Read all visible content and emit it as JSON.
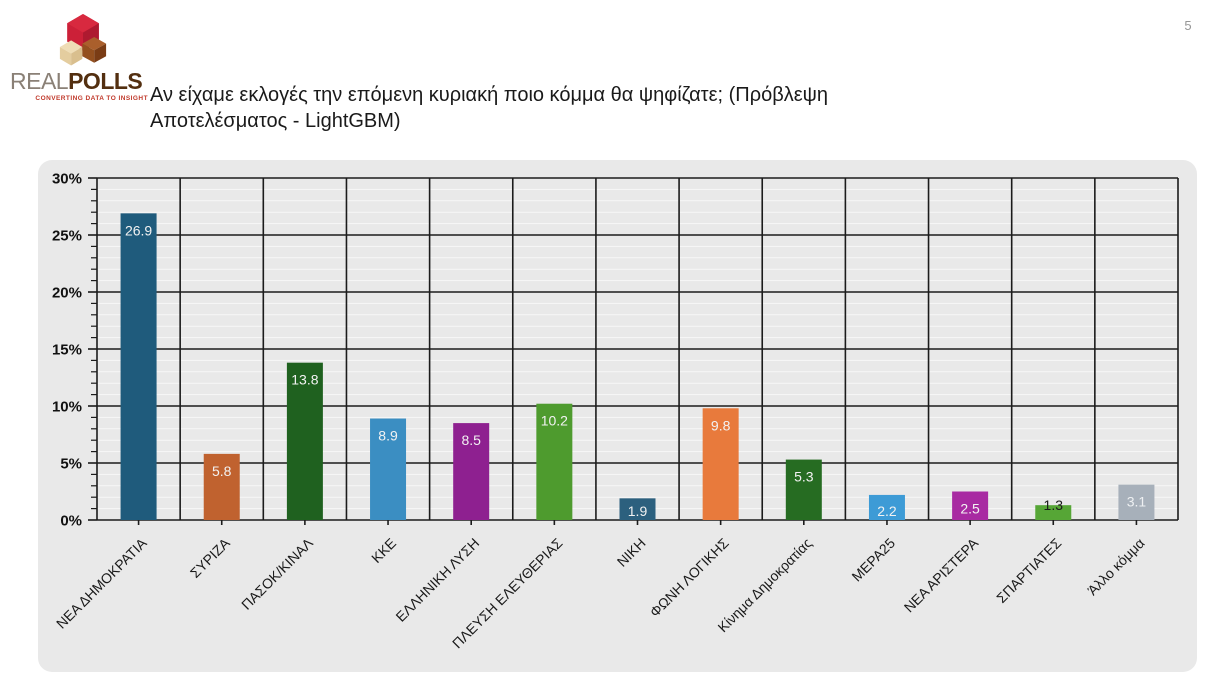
{
  "page": {
    "number": "5"
  },
  "logo": {
    "brand_real": "REAL",
    "brand_polls": "POLLS",
    "tagline": "CONVERTING DATA TO INSIGHT"
  },
  "header": {
    "title": "Αν είχαμε εκλογές την επόμενη κυριακή ποιο κόμμα θα ψηφίζατε; (Πρόβλεψη\nΑποτελέσματος - LightGBM)"
  },
  "chart_data": {
    "type": "bar",
    "title": "",
    "xlabel": "",
    "ylabel": "",
    "categories": [
      "ΝΕΑ ΔΗΜΟΚΡΑΤΙΑ",
      "ΣΥΡΙΖΑ",
      "ΠΑΣΟΚ/ΚΙΝΑΛ",
      "ΚΚΕ",
      "ΕΛΛΗΝΙΚΗ ΛΥΣΗ",
      "ΠΛΕΥΣΗ ΕΛΕΥΘΕΡΙΑΣ",
      "ΝΙΚΗ",
      "ΦΩΝΗ ΛΟΓΙΚΗΣ",
      "Κίνημα Δημοκρατίας",
      "ΜΕΡΑ25",
      "ΝΕΑ ΑΡΙΣΤΕΡΑ",
      "ΣΠΑΡΤΙΑΤΕΣ",
      "Άλλο κόμμα"
    ],
    "values": [
      26.9,
      5.8,
      13.8,
      8.9,
      8.5,
      10.2,
      1.9,
      9.8,
      5.3,
      2.2,
      2.5,
      1.3,
      3.1
    ],
    "value_labels": [
      "26.9",
      "5.8",
      "13.8",
      "8.9",
      "8.5",
      "10.2",
      "1.9",
      "9.8",
      "5.3",
      "2.2",
      "2.5",
      "1.3",
      "3.1"
    ],
    "bar_colors": [
      "#1f5b7c",
      "#c0622f",
      "#1f611f",
      "#3b8ec2",
      "#8e2090",
      "#4e9b2e",
      "#2c607e",
      "#e87a3c",
      "#266c22",
      "#3d9bd6",
      "#a82aa2",
      "#56a636",
      "#a7b0ba"
    ],
    "value_label_colors": [
      "#f2f2f2",
      "#f2f2f2",
      "#f2f2f2",
      "#f2f2f2",
      "#f2f2f2",
      "#f2f2f2",
      "#f2f2f2",
      "#f2f2f2",
      "#f2f2f2",
      "#f2f2f2",
      "#f2f2f2",
      "#1a1a1a",
      "#eef0f2"
    ],
    "value_label_position": [
      "inside",
      "inside",
      "inside",
      "inside",
      "inside",
      "inside",
      "inside",
      "inside",
      "inside",
      "inside",
      "inside",
      "above",
      "inside"
    ],
    "ylim": [
      0,
      30
    ],
    "ytick_major_step": 5,
    "ytick_minor_step": 1,
    "ytick_labels": [
      "0%",
      "5%",
      "10%",
      "15%",
      "20%",
      "25%",
      "30%"
    ],
    "grid": "on",
    "legend": "none",
    "panel_bg": "#e9e9e9",
    "grid_major_color": "#1c1c1c",
    "grid_minor_color": "#f8f8f8",
    "axis_text_color": "#111111"
  }
}
